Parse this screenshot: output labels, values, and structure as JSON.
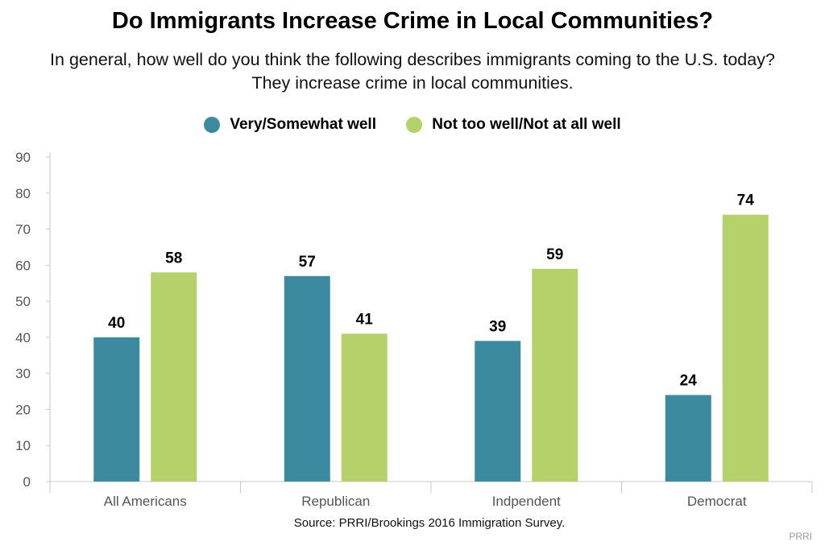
{
  "chart_data": {
    "type": "bar",
    "title": "Do Immigrants Increase Crime in Local Communities?",
    "subtitle": "In general, how well do you think the following describes immigrants coming to the U.S. today? They increase crime in local communities.",
    "categories": [
      "All Americans",
      "Republican",
      "Indpendent",
      "Democrat"
    ],
    "series": [
      {
        "name": "Very/Somewhat well",
        "color": "#3c8aa0",
        "values": [
          40,
          57,
          39,
          24
        ]
      },
      {
        "name": "Not too well/Not at all well",
        "color": "#b5d16a",
        "values": [
          58,
          41,
          59,
          74
        ]
      }
    ],
    "ylim": [
      0,
      90
    ],
    "yticks": [
      0,
      10,
      20,
      30,
      40,
      50,
      60,
      70,
      80,
      90
    ],
    "legend": "top-center",
    "grid": false
  },
  "source": "Source: PRRI/Brookings 2016 Immigration Survey.",
  "brand": "PRRI"
}
